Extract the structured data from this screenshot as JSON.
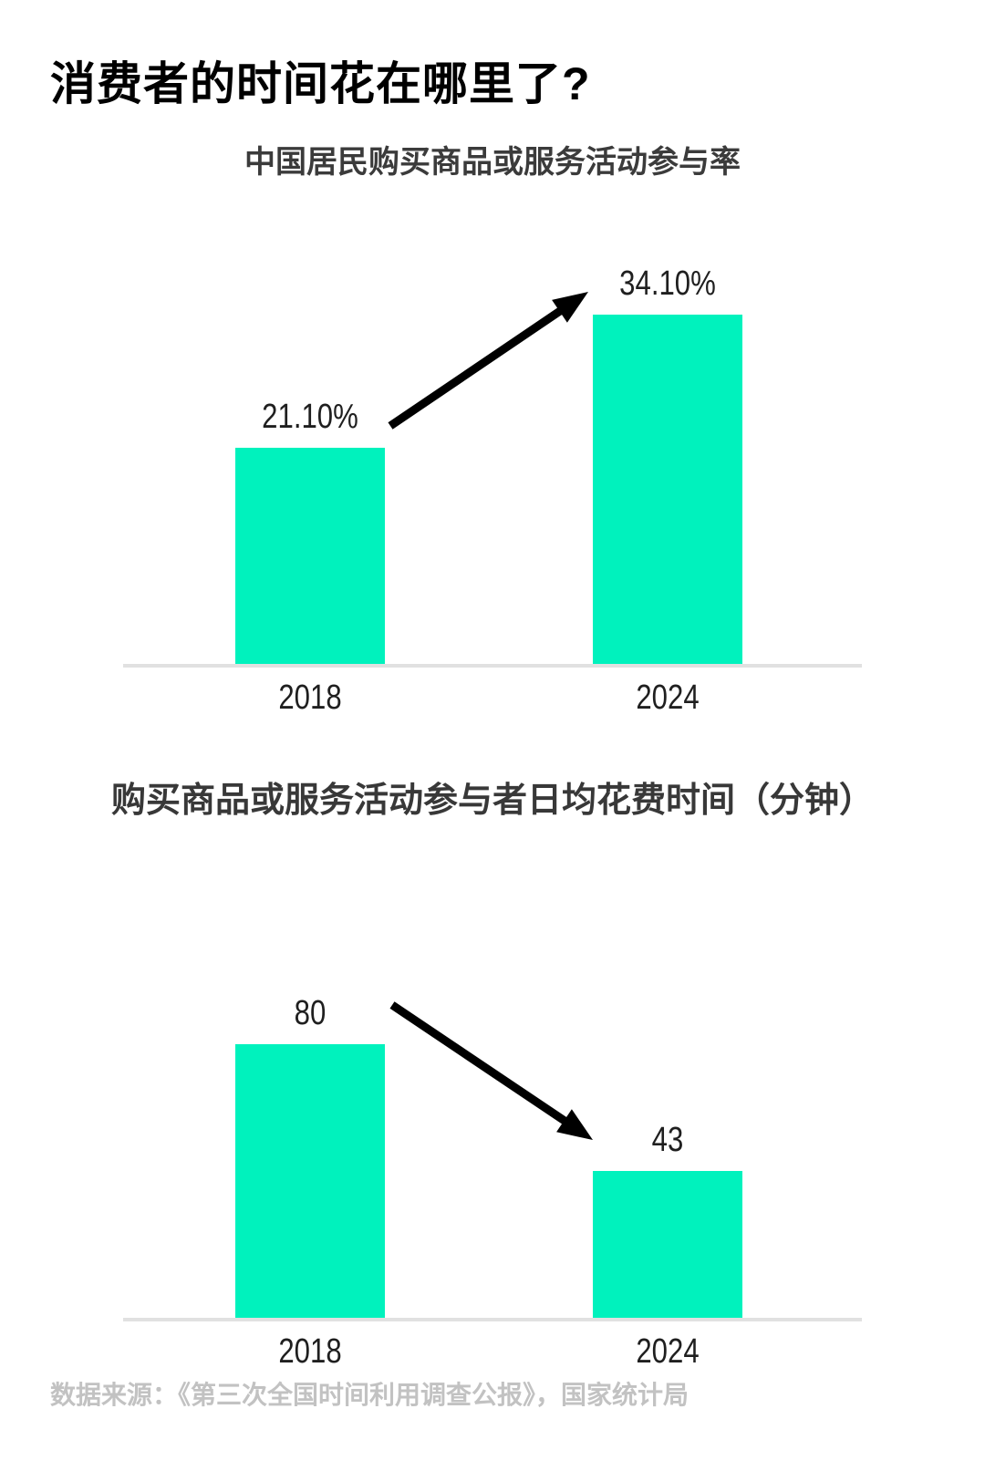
{
  "title": "消费者的时间花在哪里了?",
  "colors": {
    "background": "#FFFFFF",
    "bar": "#00F2BD",
    "axis": "#E1E1E1",
    "title": "#000000",
    "subtitle": "#3B3B3B",
    "subtitle2": "#383838",
    "value-label": "#1F1F1F",
    "tick-label": "#1F1F1F",
    "arrow": "#000000",
    "footer": "#C2C2C2"
  },
  "chart_data": [
    {
      "type": "bar",
      "title": "中国居民购买商品或服务活动参与率",
      "categories": [
        "2018",
        "2024"
      ],
      "values": [
        21.1,
        34.1
      ],
      "value_labels": [
        "21.10%",
        "34.10%"
      ],
      "unit": "%",
      "ylim": [
        0,
        38
      ],
      "grid": false,
      "legend": "none",
      "trend_annotation": "increase-arrow"
    },
    {
      "type": "bar",
      "title": "购买商品或服务活动参与者日均花费时间（分钟）",
      "categories": [
        "2018",
        "2024"
      ],
      "values": [
        80,
        43
      ],
      "value_labels": [
        "80",
        "43"
      ],
      "unit": "分钟",
      "ylim": [
        0,
        90
      ],
      "grid": false,
      "legend": "none",
      "trend_annotation": "decrease-arrow"
    }
  ],
  "footer": {
    "source_text": "数据来源：《第三次全国时间利用调查公报》，国家统计局"
  }
}
